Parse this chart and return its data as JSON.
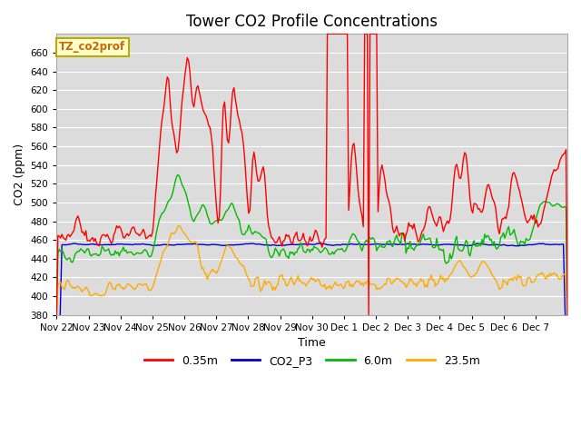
{
  "title": "Tower CO2 Profile Concentrations",
  "xlabel": "Time",
  "ylabel": "CO2 (ppm)",
  "ylim": [
    380,
    680
  ],
  "yticks": [
    380,
    400,
    420,
    440,
    460,
    480,
    500,
    520,
    540,
    560,
    580,
    600,
    620,
    640,
    660
  ],
  "xtick_labels": [
    "Nov 22",
    "Nov 23",
    "Nov 24",
    "Nov 25",
    "Nov 26",
    "Nov 27",
    "Nov 28",
    "Nov 29",
    "Nov 30",
    "Dec 1",
    "Dec 2",
    "Dec 3",
    "Dec 4",
    "Dec 5",
    "Dec 6",
    "Dec 7"
  ],
  "series": {
    "red": {
      "label": "0.35m",
      "color": "#ff0000",
      "lw": 1.0
    },
    "blue": {
      "label": "CO2_P3",
      "color": "#0000cc",
      "lw": 1.0
    },
    "green": {
      "label": "6.0m",
      "color": "#00bb00",
      "lw": 1.0
    },
    "orange": {
      "label": "23.5m",
      "color": "#ffaa00",
      "lw": 1.0
    }
  },
  "box_text": "TZ_co2prof",
  "box_facecolor": "#ffffcc",
  "box_edgecolor": "#bbaa00",
  "box_textcolor": "#cc6600",
  "plot_bg": "#dcdcdc",
  "fig_bg": "#ffffff",
  "grid_color": "#ffffff",
  "title_fontsize": 12,
  "label_fontsize": 9,
  "tick_fontsize": 7.5,
  "legend_fontsize": 9
}
